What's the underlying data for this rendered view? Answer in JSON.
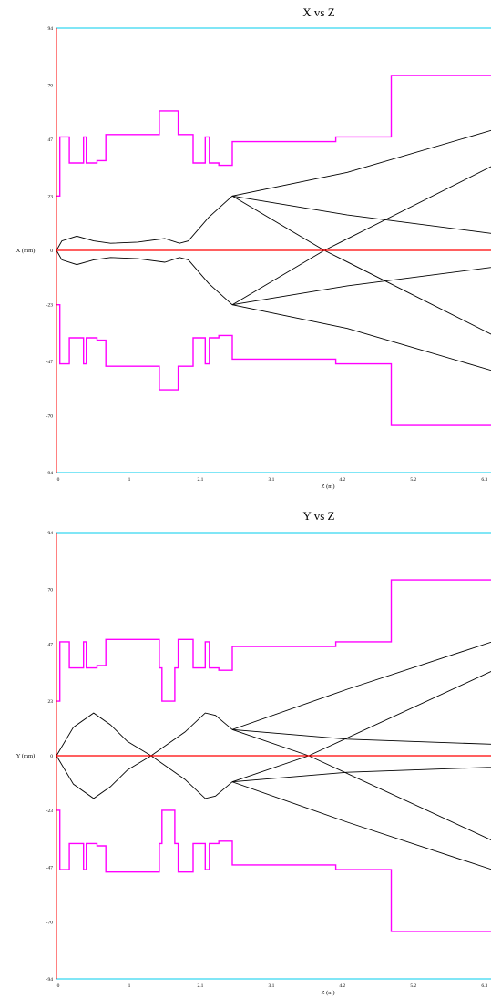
{
  "chart_data": [
    {
      "type": "line",
      "title": "X vs Z",
      "xlabel": "Z (m)",
      "ylabel": "X (mm)",
      "xlim": [
        0,
        7.3
      ],
      "ylim": [
        -94,
        94
      ],
      "x_ticks": [
        "0",
        "1",
        "2.1",
        "3.1",
        "4.2",
        "5.2",
        "6.3"
      ],
      "x_tick_values": [
        0,
        1.05,
        2.1,
        3.15,
        4.2,
        5.25,
        6.3
      ],
      "y_ticks": [
        "94",
        "70",
        "47",
        "23",
        "0",
        "-23",
        "-47",
        "-70",
        "-94"
      ],
      "y_tick_values": [
        94,
        70,
        47,
        23,
        0,
        -23,
        -47,
        -70,
        -94
      ],
      "axis_color": "#ff0000",
      "frame_color": "#00ccee",
      "aperture_color": "#ff00ff",
      "trace_color": "#000000",
      "aperture_upper": [
        [
          0,
          23
        ],
        [
          0.05,
          23
        ],
        [
          0.05,
          48
        ],
        [
          0.19,
          48
        ],
        [
          0.19,
          37
        ],
        [
          0.4,
          37
        ],
        [
          0.4,
          48
        ],
        [
          0.44,
          48
        ],
        [
          0.44,
          37
        ],
        [
          0.6,
          37
        ],
        [
          0.6,
          38
        ],
        [
          0.73,
          38
        ],
        [
          0.73,
          49
        ],
        [
          1.52,
          49
        ],
        [
          1.52,
          59
        ],
        [
          1.8,
          59
        ],
        [
          1.8,
          49
        ],
        [
          2.02,
          49
        ],
        [
          2.02,
          37
        ],
        [
          2.2,
          37
        ],
        [
          2.2,
          48
        ],
        [
          2.26,
          48
        ],
        [
          2.26,
          37
        ],
        [
          2.4,
          37
        ],
        [
          2.4,
          36
        ],
        [
          2.6,
          36
        ],
        [
          2.6,
          46
        ],
        [
          4.13,
          46
        ],
        [
          4.13,
          48
        ],
        [
          4.95,
          48
        ],
        [
          4.95,
          74
        ],
        [
          7.3,
          74
        ]
      ],
      "aperture_lower": [
        [
          0,
          -23
        ],
        [
          0.05,
          -23
        ],
        [
          0.05,
          -48
        ],
        [
          0.19,
          -48
        ],
        [
          0.19,
          -37
        ],
        [
          0.4,
          -37
        ],
        [
          0.4,
          -48
        ],
        [
          0.44,
          -48
        ],
        [
          0.44,
          -37
        ],
        [
          0.6,
          -37
        ],
        [
          0.6,
          -38
        ],
        [
          0.73,
          -38
        ],
        [
          0.73,
          -49
        ],
        [
          1.52,
          -49
        ],
        [
          1.52,
          -59
        ],
        [
          1.8,
          -59
        ],
        [
          1.8,
          -49
        ],
        [
          2.02,
          -49
        ],
        [
          2.02,
          -37
        ],
        [
          2.2,
          -37
        ],
        [
          2.2,
          -48
        ],
        [
          2.26,
          -48
        ],
        [
          2.26,
          -37
        ],
        [
          2.4,
          -37
        ],
        [
          2.4,
          -36
        ],
        [
          2.6,
          -36
        ],
        [
          2.6,
          -46
        ],
        [
          4.13,
          -46
        ],
        [
          4.13,
          -48
        ],
        [
          4.95,
          -48
        ],
        [
          4.95,
          -74
        ],
        [
          7.3,
          -74
        ]
      ],
      "traces": [
        [
          [
            0,
            0
          ],
          [
            0.08,
            4
          ],
          [
            0.3,
            6
          ],
          [
            0.55,
            4
          ],
          [
            0.8,
            3
          ],
          [
            1.2,
            3.5
          ],
          [
            1.6,
            5
          ],
          [
            1.82,
            3
          ],
          [
            1.95,
            4
          ],
          [
            2.25,
            14
          ],
          [
            2.6,
            23
          ],
          [
            4.3,
            33
          ],
          [
            7.3,
            58
          ]
        ],
        [
          [
            0,
            0
          ],
          [
            0.08,
            -4
          ],
          [
            0.3,
            -6
          ],
          [
            0.55,
            -4
          ],
          [
            0.8,
            -3
          ],
          [
            1.2,
            -3.5
          ],
          [
            1.6,
            -5
          ],
          [
            1.82,
            -3
          ],
          [
            1.95,
            -4
          ],
          [
            2.25,
            -14
          ],
          [
            2.6,
            -23
          ],
          [
            4.3,
            -33
          ],
          [
            7.3,
            -58
          ]
        ],
        [
          [
            2.6,
            23
          ],
          [
            4.3,
            15
          ],
          [
            7.3,
            4
          ]
        ],
        [
          [
            2.6,
            -23
          ],
          [
            4.3,
            -15
          ],
          [
            7.3,
            -4
          ]
        ],
        [
          [
            2.6,
            23
          ],
          [
            3.96,
            0
          ],
          [
            7.3,
            -48
          ]
        ],
        [
          [
            2.6,
            -23
          ],
          [
            3.96,
            0
          ],
          [
            7.3,
            48
          ]
        ]
      ]
    },
    {
      "type": "line",
      "title": "Y vs Z",
      "xlabel": "Z (m)",
      "ylabel": "Y (mm)",
      "xlim": [
        0,
        7.3
      ],
      "ylim": [
        -94,
        94
      ],
      "x_ticks": [
        "0",
        "1",
        "2.1",
        "3.1",
        "4.2",
        "5.2",
        "6.3"
      ],
      "x_tick_values": [
        0,
        1.05,
        2.1,
        3.15,
        4.2,
        5.25,
        6.3
      ],
      "y_ticks": [
        "94",
        "70",
        "47",
        "23",
        "0",
        "-23",
        "-47",
        "-70",
        "-94"
      ],
      "y_tick_values": [
        94,
        70,
        47,
        23,
        0,
        -23,
        -47,
        -70,
        -94
      ],
      "axis_color": "#ff0000",
      "frame_color": "#00ccee",
      "aperture_color": "#ff00ff",
      "trace_color": "#000000",
      "aperture_upper": [
        [
          0,
          23
        ],
        [
          0.05,
          23
        ],
        [
          0.05,
          48
        ],
        [
          0.19,
          48
        ],
        [
          0.19,
          37
        ],
        [
          0.4,
          37
        ],
        [
          0.4,
          48
        ],
        [
          0.44,
          48
        ],
        [
          0.44,
          37
        ],
        [
          0.6,
          37
        ],
        [
          0.6,
          38
        ],
        [
          0.73,
          38
        ],
        [
          0.73,
          49
        ],
        [
          1.52,
          49
        ],
        [
          1.52,
          37
        ],
        [
          1.56,
          37
        ],
        [
          1.56,
          23
        ],
        [
          1.75,
          23
        ],
        [
          1.75,
          37
        ],
        [
          1.8,
          37
        ],
        [
          1.8,
          49
        ],
        [
          2.02,
          49
        ],
        [
          2.02,
          37
        ],
        [
          2.2,
          37
        ],
        [
          2.2,
          48
        ],
        [
          2.26,
          48
        ],
        [
          2.26,
          37
        ],
        [
          2.4,
          37
        ],
        [
          2.4,
          36
        ],
        [
          2.6,
          36
        ],
        [
          2.6,
          46
        ],
        [
          4.13,
          46
        ],
        [
          4.13,
          48
        ],
        [
          4.95,
          48
        ],
        [
          4.95,
          74
        ],
        [
          7.3,
          74
        ]
      ],
      "aperture_lower": [
        [
          0,
          -23
        ],
        [
          0.05,
          -23
        ],
        [
          0.05,
          -48
        ],
        [
          0.19,
          -48
        ],
        [
          0.19,
          -37
        ],
        [
          0.4,
          -37
        ],
        [
          0.4,
          -48
        ],
        [
          0.44,
          -48
        ],
        [
          0.44,
          -37
        ],
        [
          0.6,
          -37
        ],
        [
          0.6,
          -38
        ],
        [
          0.73,
          -38
        ],
        [
          0.73,
          -49
        ],
        [
          1.52,
          -49
        ],
        [
          1.52,
          -37
        ],
        [
          1.56,
          -37
        ],
        [
          1.56,
          -23
        ],
        [
          1.75,
          -23
        ],
        [
          1.75,
          -37
        ],
        [
          1.8,
          -37
        ],
        [
          1.8,
          -49
        ],
        [
          2.02,
          -49
        ],
        [
          2.02,
          -37
        ],
        [
          2.2,
          -37
        ],
        [
          2.2,
          -48
        ],
        [
          2.26,
          -48
        ],
        [
          2.26,
          -37
        ],
        [
          2.4,
          -37
        ],
        [
          2.4,
          -36
        ],
        [
          2.6,
          -36
        ],
        [
          2.6,
          -46
        ],
        [
          4.13,
          -46
        ],
        [
          4.13,
          -48
        ],
        [
          4.95,
          -48
        ],
        [
          4.95,
          -74
        ],
        [
          7.3,
          -74
        ]
      ],
      "traces": [
        [
          [
            0,
            0
          ],
          [
            0.25,
            12
          ],
          [
            0.55,
            18
          ],
          [
            0.8,
            13
          ],
          [
            1.05,
            6
          ],
          [
            1.4,
            0
          ],
          [
            1.9,
            10
          ],
          [
            2.2,
            18
          ],
          [
            2.35,
            17
          ],
          [
            2.6,
            11
          ],
          [
            4.3,
            28
          ],
          [
            7.3,
            56
          ]
        ],
        [
          [
            0,
            0
          ],
          [
            0.25,
            -12
          ],
          [
            0.55,
            -18
          ],
          [
            0.8,
            -13
          ],
          [
            1.05,
            -6
          ],
          [
            1.4,
            0
          ],
          [
            1.9,
            -10
          ],
          [
            2.2,
            -18
          ],
          [
            2.35,
            -17
          ],
          [
            2.6,
            -11
          ],
          [
            4.3,
            -28
          ],
          [
            7.3,
            -56
          ]
        ],
        [
          [
            2.6,
            11
          ],
          [
            4.3,
            7
          ],
          [
            7.3,
            4
          ]
        ],
        [
          [
            2.6,
            -11
          ],
          [
            4.3,
            -7
          ],
          [
            7.3,
            -4
          ]
        ],
        [
          [
            2.6,
            11
          ],
          [
            3.73,
            0
          ],
          [
            7.3,
            -47
          ]
        ],
        [
          [
            2.6,
            -11
          ],
          [
            3.73,
            0
          ],
          [
            7.3,
            47
          ]
        ]
      ]
    }
  ]
}
